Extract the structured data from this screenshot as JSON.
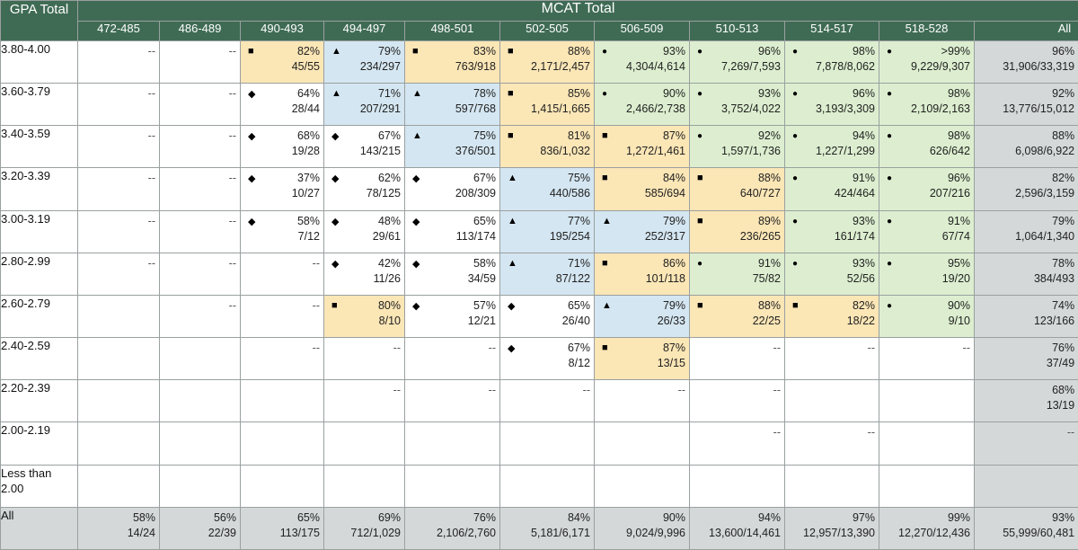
{
  "chart_data": {
    "type": "table",
    "title": "MCAT Total",
    "row_header": "GPA Total",
    "columns": [
      "472-485",
      "486-489",
      "490-493",
      "494-497",
      "498-501",
      "502-505",
      "506-509",
      "510-513",
      "514-517",
      "518-528",
      "All"
    ],
    "legend_symbols": {
      "square": "■",
      "triangle": "▲",
      "circle": "●",
      "diamond": "◆"
    },
    "colors": {
      "header": "#3f6b54",
      "orange": "#fbe6b6",
      "blue": "#d4e6f1",
      "green": "#dceecf",
      "gray": "#d4d8d8",
      "white": "#ffffff"
    },
    "rows": [
      {
        "label": "3.80-4.00",
        "cells": [
          {
            "dash": "--",
            "color": "white"
          },
          {
            "dash": "--",
            "color": "white"
          },
          {
            "pct": "82%",
            "frac": "45/55",
            "sym": "square",
            "color": "orange"
          },
          {
            "pct": "79%",
            "frac": "234/297",
            "sym": "triangle",
            "color": "blue"
          },
          {
            "pct": "83%",
            "frac": "763/918",
            "sym": "square",
            "color": "orange"
          },
          {
            "pct": "88%",
            "frac": "2,171/2,457",
            "sym": "square",
            "color": "orange"
          },
          {
            "pct": "93%",
            "frac": "4,304/4,614",
            "sym": "circle",
            "color": "green"
          },
          {
            "pct": "96%",
            "frac": "7,269/7,593",
            "sym": "circle",
            "color": "green"
          },
          {
            "pct": "98%",
            "frac": "7,878/8,062",
            "sym": "circle",
            "color": "green"
          },
          {
            "pct": ">99%",
            "frac": "9,229/9,307",
            "sym": "circle",
            "color": "green"
          },
          {
            "pct": "96%",
            "frac": "31,906/33,319",
            "color": "gray"
          }
        ]
      },
      {
        "label": "3.60-3.79",
        "cells": [
          {
            "dash": "--",
            "color": "white"
          },
          {
            "dash": "--",
            "color": "white"
          },
          {
            "pct": "64%",
            "frac": "28/44",
            "sym": "diamond",
            "color": "white"
          },
          {
            "pct": "71%",
            "frac": "207/291",
            "sym": "triangle",
            "color": "blue"
          },
          {
            "pct": "78%",
            "frac": "597/768",
            "sym": "triangle",
            "color": "blue"
          },
          {
            "pct": "85%",
            "frac": "1,415/1,665",
            "sym": "square",
            "color": "orange"
          },
          {
            "pct": "90%",
            "frac": "2,466/2,738",
            "sym": "circle",
            "color": "green"
          },
          {
            "pct": "93%",
            "frac": "3,752/4,022",
            "sym": "circle",
            "color": "green"
          },
          {
            "pct": "96%",
            "frac": "3,193/3,309",
            "sym": "circle",
            "color": "green"
          },
          {
            "pct": "98%",
            "frac": "2,109/2,163",
            "sym": "circle",
            "color": "green"
          },
          {
            "pct": "92%",
            "frac": "13,776/15,012",
            "color": "gray"
          }
        ]
      },
      {
        "label": "3.40-3.59",
        "cells": [
          {
            "dash": "--",
            "color": "white"
          },
          {
            "dash": "--",
            "color": "white"
          },
          {
            "pct": "68%",
            "frac": "19/28",
            "sym": "diamond",
            "color": "white"
          },
          {
            "pct": "67%",
            "frac": "143/215",
            "sym": "diamond",
            "color": "white"
          },
          {
            "pct": "75%",
            "frac": "376/501",
            "sym": "triangle",
            "color": "blue"
          },
          {
            "pct": "81%",
            "frac": "836/1,032",
            "sym": "square",
            "color": "orange"
          },
          {
            "pct": "87%",
            "frac": "1,272/1,461",
            "sym": "square",
            "color": "orange"
          },
          {
            "pct": "92%",
            "frac": "1,597/1,736",
            "sym": "circle",
            "color": "green"
          },
          {
            "pct": "94%",
            "frac": "1,227/1,299",
            "sym": "circle",
            "color": "green"
          },
          {
            "pct": "98%",
            "frac": "626/642",
            "sym": "circle",
            "color": "green"
          },
          {
            "pct": "88%",
            "frac": "6,098/6,922",
            "color": "gray"
          }
        ]
      },
      {
        "label": "3.20-3.39",
        "cells": [
          {
            "dash": "--",
            "color": "white"
          },
          {
            "dash": "--",
            "color": "white"
          },
          {
            "pct": "37%",
            "frac": "10/27",
            "sym": "diamond",
            "color": "white"
          },
          {
            "pct": "62%",
            "frac": "78/125",
            "sym": "diamond",
            "color": "white"
          },
          {
            "pct": "67%",
            "frac": "208/309",
            "sym": "diamond",
            "color": "white"
          },
          {
            "pct": "75%",
            "frac": "440/586",
            "sym": "triangle",
            "color": "blue"
          },
          {
            "pct": "84%",
            "frac": "585/694",
            "sym": "square",
            "color": "orange"
          },
          {
            "pct": "88%",
            "frac": "640/727",
            "sym": "square",
            "color": "orange"
          },
          {
            "pct": "91%",
            "frac": "424/464",
            "sym": "circle",
            "color": "green"
          },
          {
            "pct": "96%",
            "frac": "207/216",
            "sym": "circle",
            "color": "green"
          },
          {
            "pct": "82%",
            "frac": "2,596/3,159",
            "color": "gray"
          }
        ]
      },
      {
        "label": "3.00-3.19",
        "cells": [
          {
            "dash": "--",
            "color": "white"
          },
          {
            "dash": "--",
            "color": "white"
          },
          {
            "pct": "58%",
            "frac": "7/12",
            "sym": "diamond",
            "color": "white"
          },
          {
            "pct": "48%",
            "frac": "29/61",
            "sym": "diamond",
            "color": "white"
          },
          {
            "pct": "65%",
            "frac": "113/174",
            "sym": "diamond",
            "color": "white"
          },
          {
            "pct": "77%",
            "frac": "195/254",
            "sym": "triangle",
            "color": "blue"
          },
          {
            "pct": "79%",
            "frac": "252/317",
            "sym": "triangle",
            "color": "blue"
          },
          {
            "pct": "89%",
            "frac": "236/265",
            "sym": "square",
            "color": "orange"
          },
          {
            "pct": "93%",
            "frac": "161/174",
            "sym": "circle",
            "color": "green"
          },
          {
            "pct": "91%",
            "frac": "67/74",
            "sym": "circle",
            "color": "green"
          },
          {
            "pct": "79%",
            "frac": "1,064/1,340",
            "color": "gray"
          }
        ]
      },
      {
        "label": "2.80-2.99",
        "cells": [
          {
            "dash": "--",
            "color": "white"
          },
          {
            "dash": "--",
            "color": "white"
          },
          {
            "dash": "--",
            "color": "white"
          },
          {
            "pct": "42%",
            "frac": "11/26",
            "sym": "diamond",
            "color": "white"
          },
          {
            "pct": "58%",
            "frac": "34/59",
            "sym": "diamond",
            "color": "white"
          },
          {
            "pct": "71%",
            "frac": "87/122",
            "sym": "triangle",
            "color": "blue"
          },
          {
            "pct": "86%",
            "frac": "101/118",
            "sym": "square",
            "color": "orange"
          },
          {
            "pct": "91%",
            "frac": "75/82",
            "sym": "circle",
            "color": "green"
          },
          {
            "pct": "93%",
            "frac": "52/56",
            "sym": "circle",
            "color": "green"
          },
          {
            "pct": "95%",
            "frac": "19/20",
            "sym": "circle",
            "color": "green"
          },
          {
            "pct": "78%",
            "frac": "384/493",
            "color": "gray"
          }
        ]
      },
      {
        "label": "2.60-2.79",
        "cells": [
          {
            "color": "white"
          },
          {
            "dash": "--",
            "color": "white"
          },
          {
            "dash": "--",
            "color": "white"
          },
          {
            "pct": "80%",
            "frac": "8/10",
            "sym": "square",
            "color": "orange"
          },
          {
            "pct": "57%",
            "frac": "12/21",
            "sym": "diamond",
            "color": "white"
          },
          {
            "pct": "65%",
            "frac": "26/40",
            "sym": "diamond",
            "color": "white"
          },
          {
            "pct": "79%",
            "frac": "26/33",
            "sym": "triangle",
            "color": "blue"
          },
          {
            "pct": "88%",
            "frac": "22/25",
            "sym": "square",
            "color": "orange"
          },
          {
            "pct": "82%",
            "frac": "18/22",
            "sym": "square",
            "color": "orange"
          },
          {
            "pct": "90%",
            "frac": "9/10",
            "sym": "circle",
            "color": "green"
          },
          {
            "pct": "74%",
            "frac": "123/166",
            "color": "gray"
          }
        ]
      },
      {
        "label": "2.40-2.59",
        "cells": [
          {
            "color": "white"
          },
          {
            "color": "white"
          },
          {
            "dash": "--",
            "color": "white"
          },
          {
            "dash": "--",
            "color": "white"
          },
          {
            "dash": "--",
            "color": "white"
          },
          {
            "pct": "67%",
            "frac": "8/12",
            "sym": "diamond",
            "color": "white"
          },
          {
            "pct": "87%",
            "frac": "13/15",
            "sym": "square",
            "color": "orange"
          },
          {
            "dash": "--",
            "color": "white"
          },
          {
            "dash": "--",
            "color": "white"
          },
          {
            "dash": "--",
            "color": "white"
          },
          {
            "pct": "76%",
            "frac": "37/49",
            "color": "gray"
          }
        ]
      },
      {
        "label": "2.20-2.39",
        "cells": [
          {
            "color": "white"
          },
          {
            "color": "white"
          },
          {
            "color": "white"
          },
          {
            "dash": "--",
            "color": "white"
          },
          {
            "dash": "--",
            "color": "white"
          },
          {
            "dash": "--",
            "color": "white"
          },
          {
            "dash": "--",
            "color": "white"
          },
          {
            "dash": "--",
            "color": "white"
          },
          {
            "color": "white"
          },
          {
            "color": "white"
          },
          {
            "pct": "68%",
            "frac": "13/19",
            "color": "gray"
          }
        ]
      },
      {
        "label": "2.00-2.19",
        "cells": [
          {
            "color": "white"
          },
          {
            "color": "white"
          },
          {
            "color": "white"
          },
          {
            "color": "white"
          },
          {
            "color": "white"
          },
          {
            "color": "white"
          },
          {
            "color": "white"
          },
          {
            "dash": "--",
            "color": "white"
          },
          {
            "dash": "--",
            "color": "white"
          },
          {
            "color": "white"
          },
          {
            "dash": "--",
            "color": "gray"
          }
        ]
      },
      {
        "label": "Less than 2.00",
        "cells": [
          {
            "color": "white"
          },
          {
            "color": "white"
          },
          {
            "color": "white"
          },
          {
            "color": "white"
          },
          {
            "color": "white"
          },
          {
            "color": "white"
          },
          {
            "color": "white"
          },
          {
            "color": "white"
          },
          {
            "color": "white"
          },
          {
            "color": "white"
          },
          {
            "color": "gray"
          }
        ]
      },
      {
        "label": "All",
        "cells": [
          {
            "pct": "58%",
            "frac": "14/24",
            "color": "gray"
          },
          {
            "pct": "56%",
            "frac": "22/39",
            "color": "gray"
          },
          {
            "pct": "65%",
            "frac": "113/175",
            "color": "gray"
          },
          {
            "pct": "69%",
            "frac": "712/1,029",
            "color": "gray"
          },
          {
            "pct": "76%",
            "frac": "2,106/2,760",
            "color": "gray"
          },
          {
            "pct": "84%",
            "frac": "5,181/6,171",
            "color": "gray"
          },
          {
            "pct": "90%",
            "frac": "9,024/9,996",
            "color": "gray"
          },
          {
            "pct": "94%",
            "frac": "13,600/14,461",
            "color": "gray"
          },
          {
            "pct": "97%",
            "frac": "12,957/13,390",
            "color": "gray"
          },
          {
            "pct": "99%",
            "frac": "12,270/12,436",
            "color": "gray"
          },
          {
            "pct": "93%",
            "frac": "55,999/60,481",
            "color": "gray"
          }
        ]
      }
    ]
  }
}
